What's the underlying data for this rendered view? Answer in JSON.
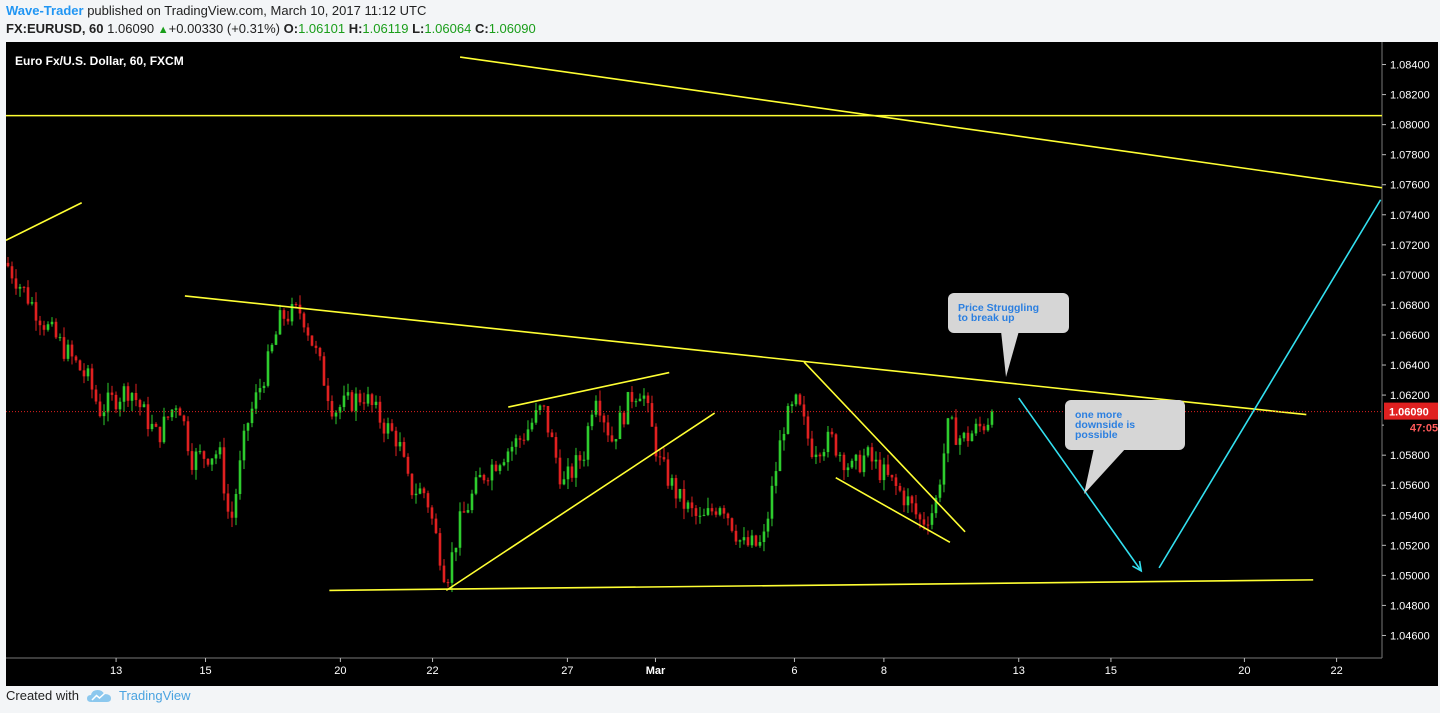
{
  "header": {
    "author": "Wave-Trader",
    "published_text": "published on TradingView.com, March 10, 2017 11:12 UTC",
    "symbol": "FX:EURUSD, 60",
    "last": "1.06090",
    "change": "+0.00330 (+0.31%)",
    "o_label": "O:",
    "o_value": "1.06101",
    "h_label": "H:",
    "h_value": "1.06119",
    "l_label": "L:",
    "l_value": "1.06064",
    "c_label": "C:",
    "c_value": "1.06090"
  },
  "footer": {
    "created_with": "Created with",
    "brand": "TradingView"
  },
  "colors": {
    "chart_bg": "#000000",
    "up": "#2ecc2e",
    "down": "#e02020",
    "trendline": "#ffff33",
    "projection": "#33e0f0",
    "price_marker": "#e02020"
  },
  "chart_data": {
    "type": "candlestick",
    "title": "Euro Fx/U.S. Dollar, 60, FXCM",
    "ylim": [
      1.0445,
      1.0855
    ],
    "y_ticks": [
      "1.04600",
      "1.04800",
      "1.05000",
      "1.05200",
      "1.05400",
      "1.05600",
      "1.05800",
      "1.06000",
      "1.06200",
      "1.06400",
      "1.06600",
      "1.06800",
      "1.07000",
      "1.07200",
      "1.07400",
      "1.07600",
      "1.07800",
      "1.08000",
      "1.08200",
      "1.08400"
    ],
    "x_ticks": [
      {
        "label": "13",
        "t": 0.08
      },
      {
        "label": "15",
        "t": 0.145
      },
      {
        "label": "20",
        "t": 0.243
      },
      {
        "label": "22",
        "t": 0.31
      },
      {
        "label": "27",
        "t": 0.408
      },
      {
        "label": "Mar",
        "t": 0.472
      },
      {
        "label": "6",
        "t": 0.573
      },
      {
        "label": "8",
        "t": 0.638
      },
      {
        "label": "13",
        "t": 0.736
      },
      {
        "label": "15",
        "t": 0.803
      },
      {
        "label": "20",
        "t": 0.9
      },
      {
        "label": "22",
        "t": 0.967
      }
    ],
    "last_price": 1.0609,
    "last_price_label": "1.06090",
    "countdown": "47:05",
    "path": [
      [
        0.0,
        1.0708
      ],
      [
        0.03,
        1.0665
      ],
      [
        0.06,
        1.063
      ],
      [
        0.068,
        1.061
      ],
      [
        0.09,
        1.0625
      ],
      [
        0.1,
        1.0608
      ],
      [
        0.11,
        1.0592
      ],
      [
        0.125,
        1.0618
      ],
      [
        0.135,
        1.0578
      ],
      [
        0.155,
        1.0582
      ],
      [
        0.163,
        1.0532
      ],
      [
        0.175,
        1.06
      ],
      [
        0.19,
        1.064
      ],
      [
        0.2,
        1.0672
      ],
      [
        0.215,
        1.0676
      ],
      [
        0.228,
        1.064
      ],
      [
        0.238,
        1.061
      ],
      [
        0.26,
        1.062
      ],
      [
        0.275,
        1.06
      ],
      [
        0.285,
        1.059
      ],
      [
        0.293,
        1.0558
      ],
      [
        0.305,
        1.0555
      ],
      [
        0.31,
        1.0535
      ],
      [
        0.32,
        1.0497
      ],
      [
        0.33,
        1.0535
      ],
      [
        0.345,
        1.0565
      ],
      [
        0.36,
        1.058
      ],
      [
        0.375,
        1.0592
      ],
      [
        0.39,
        1.0612
      ],
      [
        0.405,
        1.056
      ],
      [
        0.42,
        1.0582
      ],
      [
        0.428,
        1.0625
      ],
      [
        0.44,
        1.059
      ],
      [
        0.455,
        1.062
      ],
      [
        0.462,
        1.0625
      ],
      [
        0.475,
        1.0575
      ],
      [
        0.49,
        1.055
      ],
      [
        0.505,
        1.0535
      ],
      [
        0.52,
        1.055
      ],
      [
        0.535,
        1.052
      ],
      [
        0.55,
        1.052
      ],
      [
        0.565,
        1.06
      ],
      [
        0.575,
        1.0615
      ],
      [
        0.585,
        1.0585
      ],
      [
        0.6,
        1.059
      ],
      [
        0.615,
        1.057
      ],
      [
        0.625,
        1.058
      ],
      [
        0.64,
        1.0565
      ],
      [
        0.655,
        1.055
      ],
      [
        0.665,
        1.0535
      ],
      [
        0.675,
        1.0545
      ],
      [
        0.685,
        1.06
      ],
      [
        0.695,
        1.059
      ],
      [
        0.71,
        1.06
      ],
      [
        0.718,
        1.0609
      ]
    ],
    "trendlines": [
      {
        "x1": 0.0,
        "y1": 1.0723,
        "x2": 0.055,
        "y2": 1.0748
      },
      {
        "x1": 0.0,
        "y1": 1.0806,
        "x2": 1.0,
        "y2": 1.0806
      },
      {
        "x1": 0.33,
        "y1": 1.0845,
        "x2": 1.0,
        "y2": 1.0758
      },
      {
        "x1": 0.13,
        "y1": 1.0686,
        "x2": 0.945,
        "y2": 1.0607
      },
      {
        "x1": 0.235,
        "y1": 1.049,
        "x2": 0.95,
        "y2": 1.0497
      },
      {
        "x1": 0.32,
        "y1": 1.049,
        "x2": 0.515,
        "y2": 1.0608
      },
      {
        "x1": 0.365,
        "y1": 1.0612,
        "x2": 0.482,
        "y2": 1.0635
      },
      {
        "x1": 0.58,
        "y1": 1.0642,
        "x2": 0.697,
        "y2": 1.0529
      },
      {
        "x1": 0.603,
        "y1": 1.0565,
        "x2": 0.686,
        "y2": 1.0522
      }
    ],
    "projections": [
      {
        "x1": 0.736,
        "y1": 1.0618,
        "x2": 0.825,
        "y2": 1.0503
      },
      {
        "x1": 0.838,
        "y1": 1.0505,
        "x2": 0.999,
        "y2": 1.075
      }
    ],
    "callouts": [
      {
        "id": "callout-1",
        "text_lines": [
          "Price Struggling",
          "to break up"
        ]
      },
      {
        "id": "callout-2",
        "text_lines": [
          "one more",
          "downside is",
          "possible"
        ]
      }
    ]
  }
}
